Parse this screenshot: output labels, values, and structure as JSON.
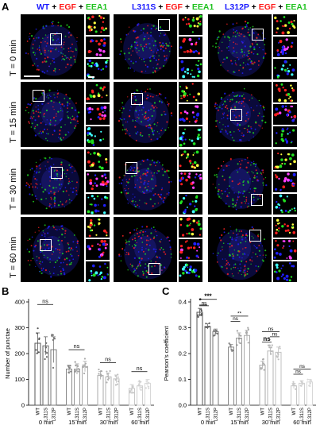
{
  "panelA": {
    "letter": "A",
    "columns": [
      {
        "genotype": "WT",
        "egf": "EGF",
        "eea1": "EEA1",
        "plus": "+"
      },
      {
        "genotype": "L311S",
        "egf": "EGF",
        "eea1": "EEA1",
        "plus": "+"
      },
      {
        "genotype": "L312P",
        "egf": "EGF",
        "eea1": "EEA1",
        "plus": "+"
      }
    ],
    "rows": [
      "T = 0 min",
      "T = 15 min",
      "T = 30 min",
      "T = 60 min"
    ],
    "colors": {
      "dapi": "#2020ff",
      "egf": "#ff2020",
      "eea1": "#20e020"
    }
  },
  "panelB": {
    "letter": "B",
    "chart_data": {
      "type": "bar",
      "ylabel": "Number of punctae",
      "ylim": [
        0,
        400
      ],
      "yticks": [
        0,
        100,
        200,
        300,
        400
      ],
      "groups": [
        "0 min",
        "15 min",
        "30 min",
        "60 min"
      ],
      "bar_labels": [
        "WT",
        "L311S",
        "L312P"
      ],
      "series": [
        {
          "group": "0 min",
          "values": [
            240,
            230,
            215
          ]
        },
        {
          "group": "15 min",
          "values": [
            140,
            140,
            150
          ]
        },
        {
          "group": "30 min",
          "values": [
            115,
            110,
            102
          ]
        },
        {
          "group": "60 min",
          "values": [
            65,
            75,
            85
          ]
        }
      ],
      "errors": [
        {
          "group": "0 min",
          "values": [
            40,
            35,
            50
          ]
        },
        {
          "group": "15 min",
          "values": [
            15,
            20,
            20
          ]
        },
        {
          "group": "30 min",
          "values": [
            15,
            15,
            15
          ]
        },
        {
          "group": "60 min",
          "values": [
            15,
            15,
            15
          ]
        }
      ],
      "annotations": [
        "ns",
        "ns",
        "ns",
        "ns"
      ]
    }
  },
  "panelC": {
    "letter": "C",
    "chart_data": {
      "type": "bar",
      "ylabel": "Pearson's coefficient",
      "ylim": [
        0,
        0.4
      ],
      "yticks": [
        0.0,
        0.1,
        0.2,
        0.3,
        0.4
      ],
      "groups": [
        "0 min",
        "15 min",
        "30 min",
        "60 min"
      ],
      "bar_labels": [
        "WT",
        "L311S",
        "L312P"
      ],
      "series": [
        {
          "group": "0 min",
          "values": [
            0.36,
            0.305,
            0.285
          ]
        },
        {
          "group": "15 min",
          "values": [
            0.225,
            0.26,
            0.27
          ]
        },
        {
          "group": "30 min",
          "values": [
            0.155,
            0.21,
            0.205
          ]
        },
        {
          "group": "60 min",
          "values": [
            0.075,
            0.085,
            0.09
          ]
        }
      ],
      "errors": [
        {
          "group": "0 min",
          "values": [
            0.015,
            0.01,
            0.01
          ]
        },
        {
          "group": "15 min",
          "values": [
            0.01,
            0.02,
            0.02
          ]
        },
        {
          "group": "30 min",
          "values": [
            0.015,
            0.015,
            0.02
          ]
        },
        {
          "group": "60 min",
          "values": [
            0.01,
            0.01,
            0.01
          ]
        }
      ],
      "annotations": [
        "ns",
        "***",
        "*",
        "ns",
        "ns",
        "**",
        "ns",
        "ns",
        "ns",
        "ns",
        "ns"
      ]
    }
  }
}
